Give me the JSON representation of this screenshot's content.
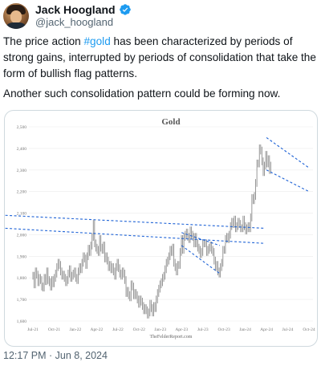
{
  "author": {
    "name": "Jack Hoogland",
    "handle": "@jack_hoogland"
  },
  "body": {
    "p1_before": "The price action ",
    "hashtag": "#gold",
    "p1_after": " has been characterized by periods of strong gains, interrupted by periods of consolidation that take the form of bullish flag patterns.",
    "p2": "Another such consolidation pattern could be forming now."
  },
  "timestamp": "12:17 PM · Jun 8, 2024",
  "colors": {
    "accent": "#1d9bf0",
    "flag_lines": "#1f63d6",
    "bars": "#8c8c8c"
  },
  "chart_data": {
    "type": "ohlc",
    "title": "Gold",
    "source": "TheFelderReport.com",
    "y_ticks": [
      "1,600",
      "1,700",
      "1,800",
      "1,900",
      "2,000",
      "2,100",
      "2,200",
      "2,300",
      "2,400",
      "2,500"
    ],
    "ylim": [
      1600,
      2500
    ],
    "x_ticks": [
      "Jul-21",
      "Oct-21",
      "Jan-22",
      "Apr-22",
      "Jul-22",
      "Oct-22",
      "Jan-23",
      "Apr-23",
      "Jul-23",
      "Oct-23",
      "Jan-24",
      "Apr-24",
      "Jul-24",
      "Oct-24"
    ],
    "weekly_close": [
      1810,
      1770,
      1830,
      1815,
      1780,
      1800,
      1790,
      1760,
      1755,
      1800,
      1785,
      1830,
      1790,
      1780,
      1760,
      1790,
      1775,
      1800,
      1820,
      1850,
      1870,
      1860,
      1830,
      1810,
      1815,
      1800,
      1780,
      1790,
      1820,
      1840,
      1800,
      1810,
      1820,
      1830,
      1800,
      1790,
      1830,
      1850,
      1840,
      1870,
      1900,
      1890,
      1860,
      1900,
      1935,
      1920,
      1950,
      1990,
      2050,
      1960,
      1940,
      1930,
      1920,
      1980,
      1940,
      1930,
      1950,
      1890,
      1900,
      1880,
      1850,
      1860,
      1840,
      1850,
      1830,
      1810,
      1850,
      1870,
      1845,
      1820,
      1810,
      1830,
      1820,
      1790,
      1730,
      1740,
      1720,
      1710,
      1770,
      1760,
      1720,
      1730,
      1720,
      1700,
      1680,
      1700,
      1690,
      1670,
      1650,
      1660,
      1650,
      1630,
      1640,
      1680,
      1660,
      1640,
      1670,
      1660,
      1700,
      1730,
      1750,
      1770,
      1780,
      1800,
      1810,
      1840,
      1870,
      1880,
      1900,
      1930,
      1920,
      1940,
      1870,
      1850,
      1830,
      1860,
      1860,
      1920,
      1980,
      1930,
      1990,
      2000,
      2010,
      1990,
      1980,
      2020,
      2000,
      1990,
      1960,
      1990,
      1960,
      1940,
      1930,
      1910,
      1920,
      1960,
      1960,
      1960,
      1920,
      1930,
      1940,
      1950,
      1930,
      1920,
      1880,
      1850,
      1860,
      1830,
      1820,
      1850,
      1870,
      1930,
      1930,
      1980,
      1990,
      1980,
      2000,
      2040,
      2060,
      2050,
      2070,
      2030,
      2040,
      2060,
      2050,
      2030,
      2030,
      2070,
      2040,
      2020,
      2030,
      2040,
      2030,
      2080,
      2170,
      2160,
      2180,
      2240,
      2330,
      2330,
      2400,
      2390,
      2340,
      2290,
      2320,
      2370,
      2330,
      2350,
      2300,
      2320
    ],
    "annotations": [
      {
        "kind": "flag",
        "upper": [
          [
            "Apr-23",
            2010
          ],
          [
            "Oct-23",
            1950
          ]
        ],
        "lower": [
          [
            "Apr-23",
            1950
          ],
          [
            "Oct-23",
            1820
          ]
        ]
      },
      {
        "kind": "flag",
        "upper": [
          [
            "Dec-23",
            2090
          ],
          [
            "Apr-24",
            2030
          ]
        ],
        "lower": [
          [
            "Dec-23",
            2030
          ],
          [
            "Apr-24",
            1960
          ]
        ]
      },
      {
        "kind": "flag",
        "upper": [
          [
            "Apr-24",
            2450
          ],
          [
            "Oct-24",
            2310
          ]
        ],
        "lower": [
          [
            "Apr-24",
            2300
          ],
          [
            "Oct-24",
            2200
          ]
        ]
      }
    ]
  }
}
